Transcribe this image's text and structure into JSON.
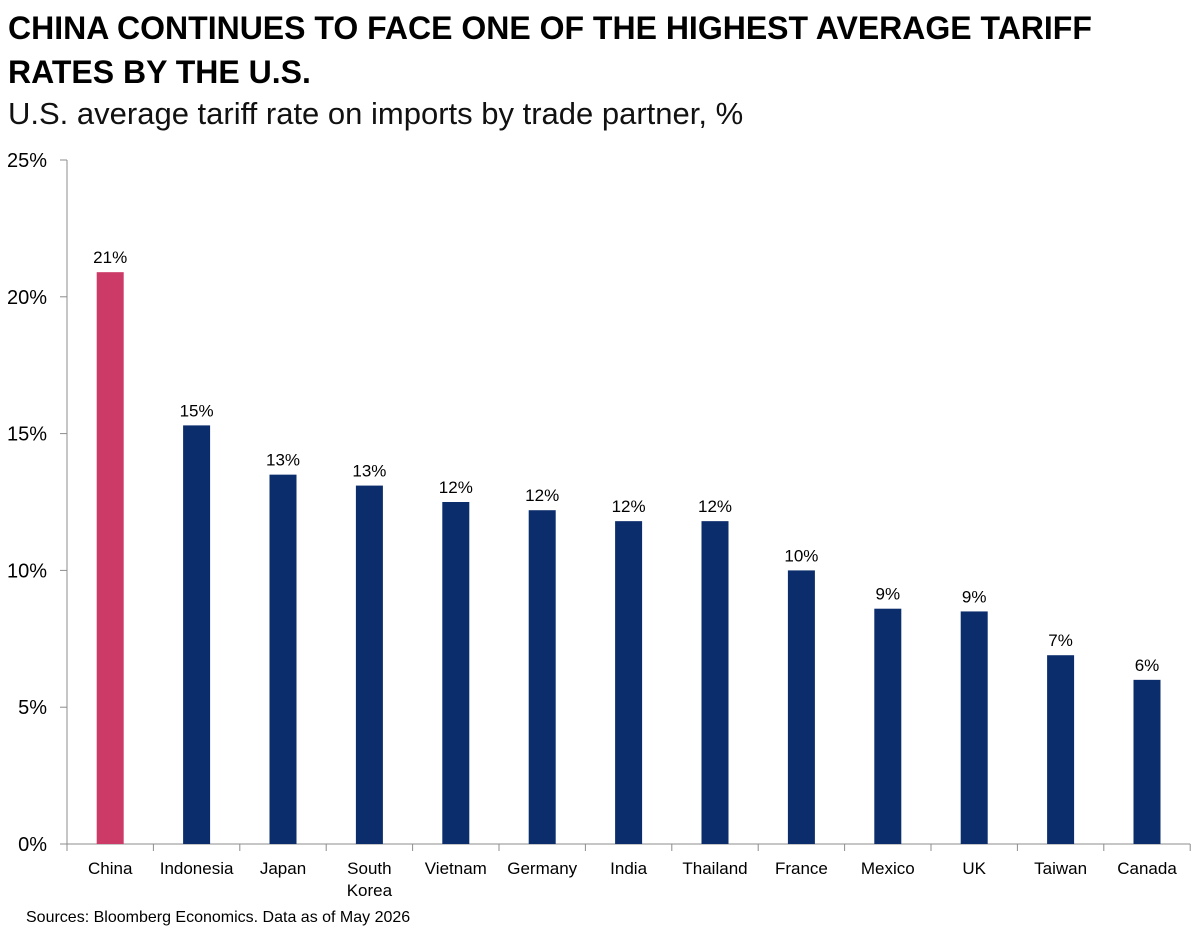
{
  "header": {
    "title": "CHINA CONTINUES TO FACE ONE OF THE HIGHEST AVERAGE TARIFF RATES BY THE U.S.",
    "subtitle": "U.S. average tariff rate on imports by trade partner, %"
  },
  "footer": {
    "source": "Sources: Bloomberg Economics. Data as of May 2026"
  },
  "colors": {
    "highlight": "#CC3B68",
    "bar": "#0B2D6B",
    "axis": "#8C8C8C"
  },
  "chart_data": {
    "type": "bar",
    "title": "CHINA CONTINUES TO FACE ONE OF THE HIGHEST AVERAGE TARIFF RATES BY THE U.S.",
    "subtitle": "U.S. average tariff rate on imports by trade partner, %",
    "xlabel": "",
    "ylabel": "",
    "ylim": [
      0,
      25
    ],
    "yticks": [
      0,
      5,
      10,
      15,
      20,
      25
    ],
    "ytick_labels": [
      "0%",
      "5%",
      "10%",
      "15%",
      "20%",
      "25%"
    ],
    "grid": false,
    "legend": "none",
    "categories": [
      "China",
      "Indonesia",
      "Japan",
      "South Korea",
      "Vietnam",
      "Germany",
      "India",
      "Thailand",
      "France",
      "Mexico",
      "UK",
      "Taiwan",
      "Canada"
    ],
    "category_lines": [
      [
        "China"
      ],
      [
        "Indonesia"
      ],
      [
        "Japan"
      ],
      [
        "South",
        "Korea"
      ],
      [
        "Vietnam"
      ],
      [
        "Germany"
      ],
      [
        "India"
      ],
      [
        "Thailand"
      ],
      [
        "France"
      ],
      [
        "Mexico"
      ],
      [
        "UK"
      ],
      [
        "Taiwan"
      ],
      [
        "Canada"
      ]
    ],
    "values": [
      20.9,
      15.3,
      13.5,
      13.1,
      12.5,
      12.2,
      11.8,
      11.8,
      10.0,
      8.6,
      8.5,
      6.9,
      6.0
    ],
    "data_labels": [
      "21%",
      "15%",
      "13%",
      "13%",
      "12%",
      "12%",
      "12%",
      "12%",
      "10%",
      "9%",
      "9%",
      "7%",
      "6%"
    ],
    "highlight_index": 0
  }
}
